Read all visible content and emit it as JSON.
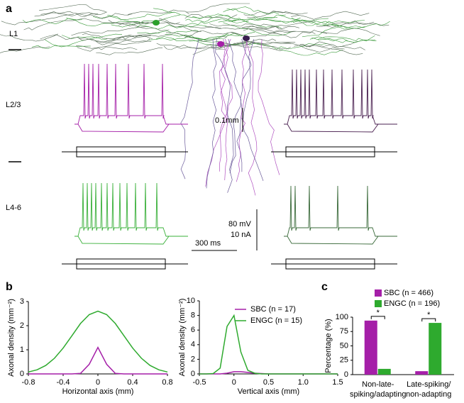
{
  "panel_a": {
    "label": "a",
    "layers": [
      "L1",
      "L2/3",
      "L4-6"
    ],
    "scale_bars": [
      "0.1mm",
      "80 mV",
      "10 nA",
      "300 ms"
    ]
  },
  "chart_data": [
    {
      "type": "line",
      "panel_label": "b",
      "xlabel": "Horizontal axis (mm)",
      "ylabel": "Axonal density (mm⁻²)",
      "x": [
        -0.8,
        -0.7,
        -0.6,
        -0.5,
        -0.4,
        -0.3,
        -0.2,
        -0.1,
        0,
        0.1,
        0.2,
        0.3,
        0.4,
        0.5,
        0.6,
        0.7,
        0.8
      ],
      "series": [
        {
          "color": "#a51fa8",
          "values": [
            0,
            0,
            0,
            0,
            0,
            0,
            0.02,
            0.4,
            1.1,
            0.4,
            0.02,
            0,
            0,
            0,
            0,
            0,
            0
          ]
        },
        {
          "color": "#2eaa2e",
          "values": [
            0.08,
            0.17,
            0.35,
            0.65,
            1.07,
            1.58,
            2.09,
            2.46,
            2.6,
            2.46,
            2.09,
            1.58,
            1.07,
            0.65,
            0.35,
            0.17,
            0.08
          ]
        }
      ],
      "xlim": [
        -0.8,
        0.8
      ],
      "ylim": [
        0,
        3
      ],
      "xticks": [
        -0.8,
        -0.4,
        0,
        0.4,
        0.8
      ],
      "yticks": [
        0,
        1,
        2,
        3
      ]
    },
    {
      "type": "line",
      "xlabel": "Vertical axis (mm)",
      "ylabel": "Axonal density (mm⁻²)",
      "x": [
        -0.5,
        -0.4,
        -0.3,
        -0.2,
        -0.1,
        0,
        0.1,
        0.2,
        0.3,
        0.4,
        0.5,
        0.6,
        0.7,
        0.8,
        0.9,
        1.0,
        1.1,
        1.2,
        1.3,
        1.4,
        1.5
      ],
      "series": [
        {
          "name": "SBC (n = 17)",
          "color": "#a51fa8",
          "values": [
            0,
            0,
            0,
            0,
            0.1,
            0.3,
            0.3,
            0.2,
            0.1,
            0.05,
            0,
            0,
            0,
            0,
            0,
            0,
            0,
            0,
            0,
            0,
            0
          ]
        },
        {
          "name": "ENGC (n = 15)",
          "color": "#2eaa2e",
          "values": [
            0,
            0,
            0.05,
            0.8,
            6.5,
            8.0,
            3.0,
            0.5,
            0.1,
            0,
            0,
            0,
            0,
            0,
            0,
            0,
            0,
            0,
            0,
            0,
            0
          ]
        }
      ],
      "xlim": [
        -0.5,
        1.5
      ],
      "ylim": [
        0,
        10
      ],
      "xticks": [
        -0.5,
        0,
        0.5,
        {
          "value": 1,
          "label": "1.0"
        },
        1.5
      ],
      "yticks": [
        0,
        2,
        4,
        6,
        8,
        10
      ],
      "legend": "upper right"
    },
    {
      "type": "bar",
      "panel_label": "c",
      "ylabel": "Percentage (%)",
      "categories": [
        [
          "Non-late-",
          "spiking/adapting"
        ],
        [
          "Late-spiking/",
          "non-adapting"
        ]
      ],
      "series": [
        {
          "name": "SBC (n = 466)",
          "color": "#a51fa8",
          "values": [
            94,
            6
          ]
        },
        {
          "name": "ENGC (n = 196)",
          "color": "#2eaa2e",
          "values": [
            10,
            90
          ]
        }
      ],
      "ylim": [
        0,
        100
      ],
      "yticks": [
        0,
        25,
        50,
        75,
        100
      ],
      "annotations": [
        "*",
        "*"
      ],
      "legend": "top"
    }
  ]
}
